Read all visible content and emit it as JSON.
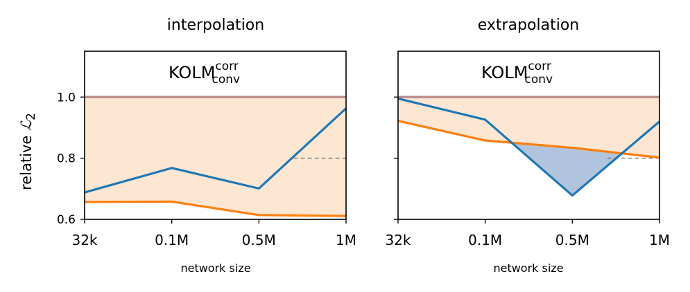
{
  "chart_data": [
    {
      "type": "line",
      "title": "interpolation",
      "annotation": {
        "base": "KOLM",
        "sup": "corr",
        "sub": "conv"
      },
      "xlabel": "network size",
      "ylabel_text": "relative ",
      "ylabel_symbol": "ℒ",
      "ylabel_sub": "2",
      "categories": [
        "32k",
        "0.1M",
        "0.5M",
        "1M"
      ],
      "y_ticks": [
        "0.6",
        "0.8",
        "1.0"
      ],
      "ylim": [
        0.6,
        1.15
      ],
      "reference": 1.0,
      "dashed_level": 0.8,
      "series": [
        {
          "values": [
            0.688,
            0.768,
            0.701,
            0.963
          ],
          "color": "#1f77b4",
          "fill": "#b0c4de"
        },
        {
          "values": [
            0.657,
            0.658,
            0.614,
            0.611
          ],
          "color": "#ff7f0e",
          "fill": "#fde7d3"
        }
      ],
      "reference_color": "#bf8f8f",
      "show_y_tick_labels": true
    },
    {
      "type": "line",
      "title": "extrapolation",
      "annotation": {
        "base": "KOLM",
        "sup": "corr",
        "sub": "conv"
      },
      "xlabel": "network size",
      "categories": [
        "32k",
        "0.1M",
        "0.5M",
        "1M"
      ],
      "ylim": [
        0.6,
        1.15
      ],
      "reference": 1.0,
      "dashed_level": 0.8,
      "series": [
        {
          "values": [
            0.995,
            0.926,
            0.678,
            0.92
          ],
          "color": "#1f77b4",
          "fill": "#b0c4de"
        },
        {
          "values": [
            0.922,
            0.858,
            0.834,
            0.802
          ],
          "color": "#ff7f0e",
          "fill": "#fde7d3"
        }
      ],
      "reference_color": "#bf8f8f",
      "show_y_tick_labels": false
    }
  ]
}
